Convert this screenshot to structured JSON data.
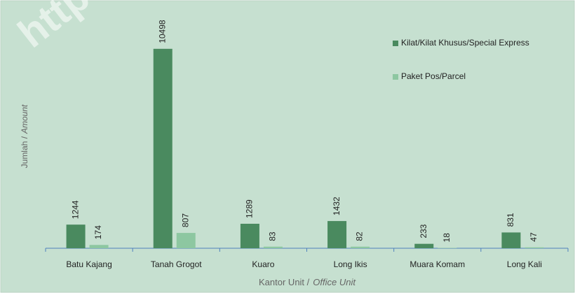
{
  "chart_data": {
    "type": "bar",
    "watermark": "https",
    "ylabel": [
      "Jumlah /",
      "Amount"
    ],
    "xlabel": [
      "Kantor Unit /",
      "Office Unit"
    ],
    "categories": [
      "Batu Kajang",
      "Tanah Grogot",
      "Kuaro",
      "Long Ikis",
      "Muara Komam",
      "Long Kali"
    ],
    "series": [
      {
        "name": "Kilat/Kilat Khusus/Special Express",
        "color": "#4a8a5f",
        "values": [
          1244,
          10498,
          1289,
          1432,
          233,
          831
        ]
      },
      {
        "name": "Paket Pos/Parcel",
        "color": "#8dc7a1",
        "values": [
          174,
          807,
          83,
          82,
          18,
          47
        ]
      }
    ],
    "ylim": [
      0,
      12000
    ],
    "legend": "right"
  }
}
